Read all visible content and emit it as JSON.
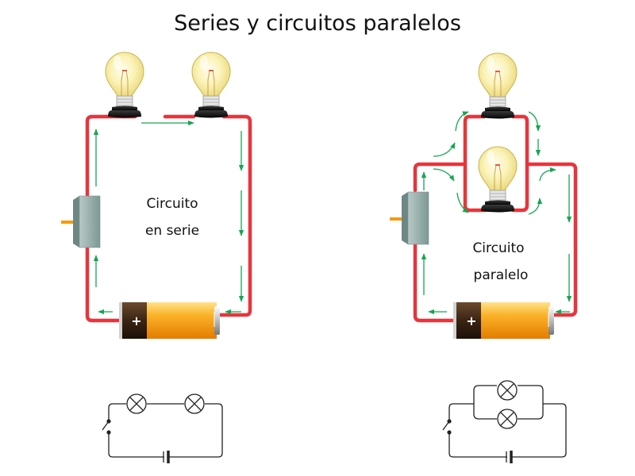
{
  "title": "Series y circuitos paralelos",
  "series": {
    "label_line1": "Circuito",
    "label_line2": "en serie",
    "battery_sign": "+"
  },
  "parallel": {
    "label_line1": "Circuito",
    "label_line2": "paralelo",
    "battery_sign": "+"
  },
  "colors": {
    "wire": "#e8343c",
    "current_arrow": "#14a650",
    "battery_body": "#f59a10",
    "switch": "#8fa9a5"
  },
  "icons": [
    "light-bulb-icon",
    "battery-icon",
    "switch-icon",
    "current-arrow-icon"
  ]
}
